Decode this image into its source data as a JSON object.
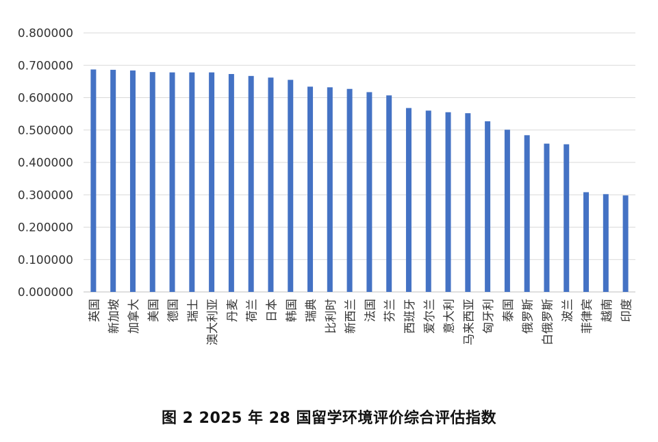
{
  "caption": "图 2 2025 年 28 国留学环境评价综合评估指数",
  "colors": {
    "bar": "#4472C4",
    "grid": "#D9D9D9",
    "axis": "#BFBFBF",
    "text": "#333333"
  },
  "chart_data": {
    "type": "bar",
    "title": "图 2 2025 年 28 国留学环境评价综合评估指数",
    "xlabel": "",
    "ylabel": "",
    "ylim": [
      0,
      0.8
    ],
    "yticks": [
      "0.000000",
      "0.100000",
      "0.200000",
      "0.300000",
      "0.400000",
      "0.500000",
      "0.600000",
      "0.700000",
      "0.800000"
    ],
    "grid": true,
    "legend": "none",
    "categories": [
      "英国",
      "新加坡",
      "加拿大",
      "美国",
      "德国",
      "瑞士",
      "澳大利亚",
      "丹麦",
      "荷兰",
      "日本",
      "韩国",
      "瑞典",
      "比利时",
      "新西兰",
      "法国",
      "芬兰",
      "西班牙",
      "爱尔兰",
      "意大利",
      "马来西亚",
      "匈牙利",
      "泰国",
      "俄罗斯",
      "白俄罗斯",
      "波兰",
      "菲律宾",
      "越南",
      "印度"
    ],
    "values": [
      0.687,
      0.686,
      0.684,
      0.679,
      0.678,
      0.678,
      0.678,
      0.673,
      0.667,
      0.662,
      0.655,
      0.634,
      0.632,
      0.627,
      0.617,
      0.607,
      0.568,
      0.56,
      0.555,
      0.552,
      0.527,
      0.501,
      0.484,
      0.458,
      0.456,
      0.308,
      0.302,
      0.298
    ]
  }
}
